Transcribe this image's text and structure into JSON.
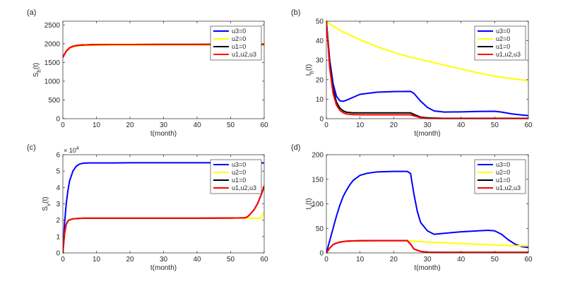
{
  "figure": {
    "series_colors": {
      "u3=0": "#0000ff",
      "u2=0": "#ffff00",
      "u1=0": "#000000",
      "u1,u2,u3": "#ff0000"
    }
  },
  "chart_data": [
    {
      "id": "a",
      "panel_label": "(a)",
      "type": "line",
      "xlabel": "t(month)",
      "ylabel_main": "S",
      "ylabel_sub": "h",
      "ylabel_tail": "(t)",
      "xlim": [
        0,
        60
      ],
      "ylim": [
        0,
        2600
      ],
      "xticks": [
        0,
        10,
        20,
        30,
        40,
        50,
        60
      ],
      "yticks": [
        0,
        500,
        1000,
        1500,
        2000,
        2500
      ],
      "ytick_labels": [
        "0",
        "500",
        "1000",
        "1500",
        "2000",
        "2500"
      ],
      "exponent_label": "",
      "grid": false,
      "legend": "top-right",
      "series": [
        {
          "name": "u3=0",
          "color": "#0000ff",
          "x": [
            0,
            1,
            2,
            3,
            4,
            5,
            6,
            8,
            10,
            15,
            20,
            30,
            40,
            50,
            60
          ],
          "y": [
            1640,
            1800,
            1890,
            1930,
            1950,
            1960,
            1967,
            1972,
            1975,
            1978,
            1979,
            1980,
            1981,
            1982,
            1982
          ]
        },
        {
          "name": "u2=0",
          "color": "#ffff00",
          "x": [
            0,
            1,
            2,
            3,
            4,
            5,
            6,
            8,
            10,
            15,
            20,
            30,
            40,
            50,
            60
          ],
          "y": [
            1640,
            1790,
            1875,
            1915,
            1935,
            1945,
            1950,
            1955,
            1958,
            1961,
            1962,
            1963,
            1964,
            1965,
            1965
          ]
        },
        {
          "name": "u1=0",
          "color": "#000000",
          "x": [
            0,
            1,
            2,
            3,
            4,
            5,
            6,
            8,
            10,
            15,
            20,
            30,
            40,
            50,
            60
          ],
          "y": [
            1640,
            1800,
            1890,
            1930,
            1950,
            1960,
            1967,
            1972,
            1975,
            1978,
            1979,
            1980,
            1981,
            1982,
            1982
          ]
        },
        {
          "name": "u1,u2,u3",
          "color": "#ff0000",
          "x": [
            0,
            1,
            2,
            3,
            4,
            5,
            6,
            8,
            10,
            15,
            20,
            30,
            40,
            50,
            60
          ],
          "y": [
            1640,
            1800,
            1890,
            1930,
            1950,
            1960,
            1967,
            1972,
            1975,
            1978,
            1979,
            1980,
            1981,
            1982,
            1982
          ]
        }
      ]
    },
    {
      "id": "b",
      "panel_label": "(b)",
      "type": "line",
      "xlabel": "t(month)",
      "ylabel_main": "I",
      "ylabel_sub": "h",
      "ylabel_tail": "(t)",
      "xlim": [
        0,
        60
      ],
      "ylim": [
        0,
        50
      ],
      "xticks": [
        0,
        10,
        20,
        30,
        40,
        50,
        60
      ],
      "yticks": [
        0,
        10,
        20,
        30,
        40,
        50
      ],
      "ytick_labels": [
        "0",
        "10",
        "20",
        "30",
        "40",
        "50"
      ],
      "exponent_label": "",
      "grid": false,
      "legend": "top-right",
      "series": [
        {
          "name": "u3=0",
          "color": "#0000ff",
          "x": [
            0,
            1,
            2,
            3,
            4,
            5,
            6,
            8,
            10,
            15,
            20,
            25,
            26,
            28,
            30,
            32,
            35,
            40,
            45,
            50,
            52,
            55,
            58,
            60
          ],
          "y": [
            50,
            30,
            18,
            11.5,
            9.2,
            8.9,
            9.5,
            11,
            12.5,
            13.6,
            13.9,
            14,
            13,
            9,
            5.8,
            4,
            3.4,
            3.5,
            3.7,
            3.8,
            3.4,
            2.5,
            1.9,
            1.6
          ]
        },
        {
          "name": "u2=0",
          "color": "#ffff00",
          "x": [
            0,
            2,
            5,
            10,
            15,
            20,
            25,
            30,
            35,
            40,
            45,
            50,
            55,
            60
          ],
          "y": [
            50,
            47.5,
            44.5,
            40.5,
            37,
            34,
            31.5,
            29.5,
            27.5,
            25.5,
            23.5,
            21.8,
            20.5,
            19.5
          ]
        },
        {
          "name": "u1=0",
          "color": "#000000",
          "x": [
            0,
            1,
            2,
            3,
            4,
            5,
            6,
            8,
            10,
            15,
            20,
            25,
            26,
            28,
            30,
            35,
            40,
            50,
            60
          ],
          "y": [
            50,
            28,
            15,
            8.5,
            5.5,
            4,
            3.3,
            3,
            3,
            3,
            3,
            3,
            2.2,
            0.8,
            0.4,
            0.2,
            0.2,
            0.2,
            0.2
          ]
        },
        {
          "name": "u1,u2,u3",
          "color": "#ff0000",
          "x": [
            0,
            1,
            2,
            3,
            4,
            5,
            6,
            8,
            10,
            15,
            20,
            25,
            26,
            28,
            30,
            35,
            40,
            50,
            60
          ],
          "y": [
            50,
            26,
            13,
            7,
            4.3,
            3,
            2.4,
            2.1,
            2,
            2,
            2,
            2,
            1.5,
            0.5,
            0.2,
            0.1,
            0.1,
            0.1,
            0.1
          ]
        }
      ]
    },
    {
      "id": "c",
      "panel_label": "(c)",
      "type": "line",
      "xlabel": "t(month)",
      "ylabel_main": "S",
      "ylabel_sub": "v",
      "ylabel_tail": "(t)",
      "xlim": [
        0,
        60
      ],
      "ylim": [
        0,
        6
      ],
      "xticks": [
        0,
        10,
        20,
        30,
        40,
        50,
        60
      ],
      "yticks": [
        0,
        1,
        2,
        3,
        4,
        5,
        6
      ],
      "ytick_labels": [
        "0",
        "1",
        "2",
        "3",
        "4",
        "5",
        "6"
      ],
      "exponent_label": "× 10",
      "exponent_power": "4",
      "grid": false,
      "legend": "top-right",
      "series": [
        {
          "name": "u3=0",
          "color": "#0000ff",
          "x": [
            0,
            0.5,
            1,
            1.5,
            2,
            3,
            4,
            5,
            6,
            8,
            10,
            15,
            20,
            30,
            40,
            50,
            55,
            60
          ],
          "y": [
            0,
            1.8,
            3.0,
            3.8,
            4.4,
            5.0,
            5.3,
            5.43,
            5.48,
            5.5,
            5.5,
            5.5,
            5.51,
            5.51,
            5.51,
            5.51,
            5.51,
            5.5
          ]
        },
        {
          "name": "u2=0",
          "color": "#ffff00",
          "x": [
            0,
            0.5,
            1,
            1.5,
            2,
            3,
            4,
            5,
            6,
            8,
            10,
            20,
            30,
            40,
            50,
            55,
            56,
            57,
            58,
            59,
            60
          ],
          "y": [
            0,
            1.2,
            1.75,
            1.95,
            2.02,
            2.08,
            2.1,
            2.11,
            2.12,
            2.12,
            2.12,
            2.12,
            2.12,
            2.12,
            2.12,
            2.12,
            2.12,
            2.11,
            2.11,
            2.12,
            2.5
          ]
        },
        {
          "name": "u1=0",
          "color": "#000000",
          "x": [
            0,
            0.5,
            1,
            1.5,
            2,
            3,
            4,
            5,
            6,
            8,
            10,
            20,
            30,
            40,
            50,
            54,
            55,
            56,
            57,
            58,
            59,
            60
          ],
          "y": [
            0,
            1.2,
            1.75,
            1.95,
            2.02,
            2.08,
            2.1,
            2.11,
            2.12,
            2.12,
            2.12,
            2.12,
            2.12,
            2.12,
            2.13,
            2.14,
            2.2,
            2.4,
            2.65,
            3.0,
            3.5,
            4.05
          ]
        },
        {
          "name": "u1,u2,u3",
          "color": "#ff0000",
          "x": [
            0,
            0.5,
            1,
            1.5,
            2,
            3,
            4,
            5,
            6,
            8,
            10,
            20,
            30,
            40,
            50,
            54,
            55,
            56,
            57,
            58,
            59,
            60
          ],
          "y": [
            0,
            1.2,
            1.75,
            1.95,
            2.02,
            2.08,
            2.1,
            2.11,
            2.12,
            2.12,
            2.12,
            2.12,
            2.12,
            2.12,
            2.13,
            2.14,
            2.2,
            2.4,
            2.65,
            3.0,
            3.5,
            4.1
          ]
        }
      ]
    },
    {
      "id": "d",
      "panel_label": "(d)",
      "type": "line",
      "xlabel": "t(month)",
      "ylabel_main": "I",
      "ylabel_sub": "v",
      "ylabel_tail": "(t)",
      "xlim": [
        0,
        60
      ],
      "ylim": [
        0,
        200
      ],
      "xticks": [
        0,
        10,
        20,
        30,
        40,
        50,
        60
      ],
      "yticks": [
        0,
        50,
        100,
        150,
        200
      ],
      "ytick_labels": [
        "0",
        "50",
        "100",
        "150",
        "200"
      ],
      "exponent_label": "",
      "grid": false,
      "legend": "top-right",
      "series": [
        {
          "name": "u3=0",
          "color": "#0000ff",
          "x": [
            0,
            1,
            2,
            3,
            4,
            5,
            6,
            7,
            8,
            10,
            12,
            15,
            20,
            24,
            25,
            26,
            27,
            28,
            30,
            32,
            35,
            40,
            45,
            48,
            50,
            52,
            54,
            56,
            58,
            60
          ],
          "y": [
            0,
            25,
            50,
            75,
            97,
            115,
            128,
            139,
            148,
            158,
            162,
            165,
            166,
            166,
            162,
            120,
            85,
            62,
            45,
            38,
            40,
            43,
            45,
            46,
            45,
            38,
            27,
            18,
            13,
            11
          ]
        },
        {
          "name": "u2=0",
          "color": "#ffff00",
          "x": [
            0,
            1,
            2,
            3,
            4,
            5,
            6,
            8,
            10,
            15,
            20,
            24,
            26,
            30,
            35,
            40,
            45,
            50,
            55,
            60
          ],
          "y": [
            0,
            10,
            17,
            20,
            22,
            23,
            24,
            24.5,
            24.8,
            25,
            25,
            25,
            24,
            22,
            20.5,
            19,
            17.5,
            16,
            15,
            14
          ]
        },
        {
          "name": "u1=0",
          "color": "#000000",
          "x": [
            0,
            1,
            2,
            3,
            4,
            5,
            6,
            8,
            10,
            15,
            20,
            24,
            25,
            26,
            28,
            30,
            35,
            40,
            50,
            60
          ],
          "y": [
            0,
            10,
            17,
            20,
            22,
            23,
            24,
            24.5,
            24.8,
            25,
            25,
            25,
            18,
            8,
            3,
            1.5,
            1,
            1,
            1,
            1
          ]
        },
        {
          "name": "u1,u2,u3",
          "color": "#ff0000",
          "x": [
            0,
            1,
            2,
            3,
            4,
            5,
            6,
            8,
            10,
            15,
            20,
            24,
            25,
            26,
            28,
            30,
            35,
            40,
            50,
            60
          ],
          "y": [
            0,
            10,
            17,
            20,
            22,
            23,
            24,
            24.5,
            24.8,
            25,
            25,
            25,
            18,
            8,
            3,
            1.5,
            1,
            1,
            1,
            1
          ]
        }
      ]
    }
  ]
}
